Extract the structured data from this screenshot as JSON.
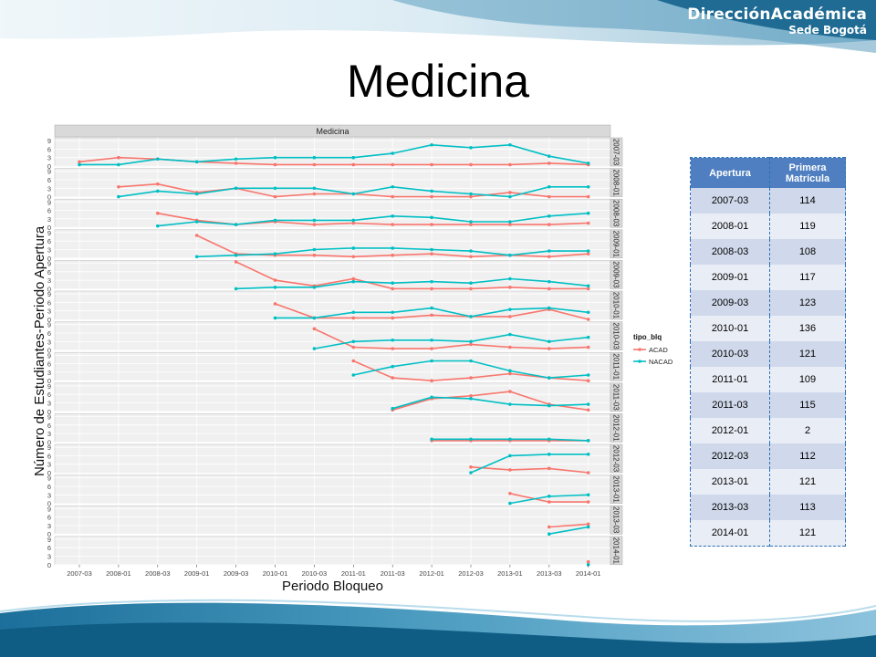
{
  "slide": {
    "title": "Medicina"
  },
  "logo": {
    "main": "DirecciónAcadémica",
    "sub": "Sede Bogotá"
  },
  "colors": {
    "ACAD": "#f8766d",
    "NACAD": "#00bfc4",
    "header_blue": "#4f7fc0",
    "row_odd": "#d0d9eb",
    "row_even": "#e9edf5"
  },
  "table": {
    "headers": [
      "Apertura",
      "Primera Matrícula"
    ],
    "rows": [
      [
        "2007-03",
        "114"
      ],
      [
        "2008-01",
        "119"
      ],
      [
        "2008-03",
        "108"
      ],
      [
        "2009-01",
        "117"
      ],
      [
        "2009-03",
        "123"
      ],
      [
        "2010-01",
        "136"
      ],
      [
        "2010-03",
        "121"
      ],
      [
        "2011-01",
        "109"
      ],
      [
        "2011-03",
        "115"
      ],
      [
        "2012-01",
        "2"
      ],
      [
        "2012-03",
        "112"
      ],
      [
        "2013-01",
        "121"
      ],
      [
        "2013-03",
        "113"
      ],
      [
        "2014-01",
        "121"
      ]
    ]
  },
  "chart_data": {
    "type": "line",
    "title": "Medicina",
    "xlabel": "Periodo Bloqueo",
    "ylabel": "Número de Estudiantes-Periodo Apertura",
    "x": [
      "2007-03",
      "2008-01",
      "2008-03",
      "2009-01",
      "2009-03",
      "2010-01",
      "2010-03",
      "2011-01",
      "2011-03",
      "2012-01",
      "2012-03",
      "2013-01",
      "2013-03",
      "2014-01"
    ],
    "yticks": [
      0,
      3,
      6,
      9
    ],
    "ylim": [
      0,
      10
    ],
    "grid": true,
    "facet_by": "Periodo Apertura",
    "legend": {
      "title": "tipo_blq",
      "position": "right",
      "entries": [
        "ACAD",
        "NACAD"
      ]
    },
    "panels": [
      {
        "label": "2007-03",
        "series": [
          {
            "name": "ACAD",
            "values": [
              1.5,
              3.0,
              2.5,
              1.5,
              1.0,
              0.5,
              0.5,
              0.5,
              0.5,
              0.5,
              0.5,
              0.5,
              1.0,
              0.5
            ]
          },
          {
            "name": "NACAD",
            "values": [
              0.5,
              0.5,
              2.5,
              1.5,
              2.5,
              3.0,
              3.0,
              3.0,
              4.5,
              7.5,
              6.5,
              7.5,
              3.5,
              1.0
            ]
          }
        ]
      },
      {
        "label": "2008-01",
        "series": [
          {
            "name": "ACAD",
            "values": [
              null,
              3.5,
              4.5,
              1.5,
              3.0,
              0.0,
              1.0,
              1.0,
              0.0,
              0.0,
              0.0,
              1.5,
              0.0,
              0.0
            ]
          },
          {
            "name": "NACAD",
            "values": [
              null,
              0.0,
              2.0,
              1.0,
              3.0,
              3.0,
              3.0,
              1.0,
              3.5,
              2.0,
              1.0,
              0.0,
              3.5,
              3.5
            ]
          }
        ]
      },
      {
        "label": "2008-03",
        "series": [
          {
            "name": "ACAD",
            "values": [
              null,
              null,
              5.0,
              2.5,
              1.0,
              2.0,
              1.0,
              1.5,
              1.0,
              1.0,
              1.0,
              1.0,
              1.0,
              1.5
            ]
          },
          {
            "name": "NACAD",
            "values": [
              null,
              null,
              0.5,
              2.0,
              1.0,
              2.5,
              2.5,
              2.5,
              4.0,
              3.5,
              2.0,
              2.0,
              4.0,
              5.0
            ]
          }
        ]
      },
      {
        "label": "2009-01",
        "series": [
          {
            "name": "ACAD",
            "values": [
              null,
              null,
              null,
              8.0,
              1.5,
              1.0,
              1.0,
              0.5,
              1.0,
              1.5,
              0.5,
              1.0,
              0.5,
              1.5
            ]
          },
          {
            "name": "NACAD",
            "values": [
              null,
              null,
              null,
              0.5,
              1.0,
              1.5,
              3.0,
              3.5,
              3.5,
              3.0,
              2.5,
              1.0,
              2.5,
              2.5
            ]
          }
        ]
      },
      {
        "label": "2009-03",
        "series": [
          {
            "name": "ACAD",
            "values": [
              null,
              null,
              null,
              null,
              9.5,
              3.0,
              1.0,
              3.5,
              0.0,
              0.0,
              0.0,
              0.5,
              0.0,
              0.0
            ]
          },
          {
            "name": "NACAD",
            "values": [
              null,
              null,
              null,
              null,
              0.0,
              0.5,
              0.5,
              2.5,
              2.0,
              2.5,
              2.0,
              3.5,
              2.5,
              1.0
            ]
          }
        ]
      },
      {
        "label": "2010-01",
        "series": [
          {
            "name": "ACAD",
            "values": [
              null,
              null,
              null,
              null,
              null,
              5.5,
              0.5,
              0.5,
              0.5,
              1.5,
              1.0,
              1.0,
              3.5,
              0.0
            ]
          },
          {
            "name": "NACAD",
            "values": [
              null,
              null,
              null,
              null,
              null,
              0.5,
              0.5,
              2.5,
              2.5,
              4.0,
              1.0,
              3.5,
              4.0,
              2.5
            ]
          }
        ]
      },
      {
        "label": "2010-03",
        "series": [
          {
            "name": "ACAD",
            "values": [
              null,
              null,
              null,
              null,
              null,
              null,
              7.5,
              1.0,
              0.5,
              0.5,
              2.0,
              1.0,
              0.5,
              1.0
            ]
          },
          {
            "name": "NACAD",
            "values": [
              null,
              null,
              null,
              null,
              null,
              null,
              0.5,
              3.0,
              3.5,
              3.5,
              3.0,
              5.5,
              3.0,
              4.5
            ]
          }
        ]
      },
      {
        "label": "2011-01",
        "series": [
          {
            "name": "ACAD",
            "values": [
              null,
              null,
              null,
              null,
              null,
              null,
              null,
              7.0,
              1.0,
              0.0,
              1.0,
              2.5,
              1.0,
              0.0
            ]
          },
          {
            "name": "NACAD",
            "values": [
              null,
              null,
              null,
              null,
              null,
              null,
              null,
              2.0,
              5.0,
              7.0,
              7.0,
              3.5,
              1.0,
              2.0
            ]
          }
        ]
      },
      {
        "label": "2011-03",
        "series": [
          {
            "name": "ACAD",
            "values": [
              null,
              null,
              null,
              null,
              null,
              null,
              null,
              null,
              0.5,
              4.5,
              5.5,
              7.0,
              2.5,
              0.5
            ]
          },
          {
            "name": "NACAD",
            "values": [
              null,
              null,
              null,
              null,
              null,
              null,
              null,
              null,
              1.0,
              5.0,
              4.5,
              2.5,
              2.0,
              2.5
            ]
          }
        ]
      },
      {
        "label": "2012-01",
        "series": [
          {
            "name": "ACAD",
            "values": [
              null,
              null,
              null,
              null,
              null,
              null,
              null,
              null,
              null,
              0.5,
              0.5,
              0.5,
              0.5,
              0.5
            ]
          },
          {
            "name": "NACAD",
            "values": [
              null,
              null,
              null,
              null,
              null,
              null,
              null,
              null,
              null,
              1.0,
              1.0,
              1.0,
              1.0,
              0.5
            ]
          }
        ]
      },
      {
        "label": "2012-03",
        "series": [
          {
            "name": "ACAD",
            "values": [
              null,
              null,
              null,
              null,
              null,
              null,
              null,
              null,
              null,
              null,
              2.0,
              1.0,
              1.5,
              0.0
            ]
          },
          {
            "name": "NACAD",
            "values": [
              null,
              null,
              null,
              null,
              null,
              null,
              null,
              null,
              null,
              null,
              0.0,
              6.0,
              6.5,
              6.5
            ]
          }
        ]
      },
      {
        "label": "2013-01",
        "series": [
          {
            "name": "ACAD",
            "values": [
              null,
              null,
              null,
              null,
              null,
              null,
              null,
              null,
              null,
              null,
              null,
              3.5,
              0.5,
              0.5
            ]
          },
          {
            "name": "NACAD",
            "values": [
              null,
              null,
              null,
              null,
              null,
              null,
              null,
              null,
              null,
              null,
              null,
              0.0,
              2.5,
              3.0
            ]
          }
        ]
      },
      {
        "label": "2013-03",
        "series": [
          {
            "name": "ACAD",
            "values": [
              null,
              null,
              null,
              null,
              null,
              null,
              null,
              null,
              null,
              null,
              null,
              null,
              2.5,
              3.5
            ]
          },
          {
            "name": "NACAD",
            "values": [
              null,
              null,
              null,
              null,
              null,
              null,
              null,
              null,
              null,
              null,
              null,
              null,
              0.0,
              2.5
            ]
          }
        ]
      },
      {
        "label": "2014-01",
        "series": [
          {
            "name": "ACAD",
            "values": [
              null,
              null,
              null,
              null,
              null,
              null,
              null,
              null,
              null,
              null,
              null,
              null,
              null,
              1.0
            ]
          },
          {
            "name": "NACAD",
            "values": [
              null,
              null,
              null,
              null,
              null,
              null,
              null,
              null,
              null,
              null,
              null,
              null,
              null,
              0.0
            ]
          }
        ]
      }
    ]
  }
}
